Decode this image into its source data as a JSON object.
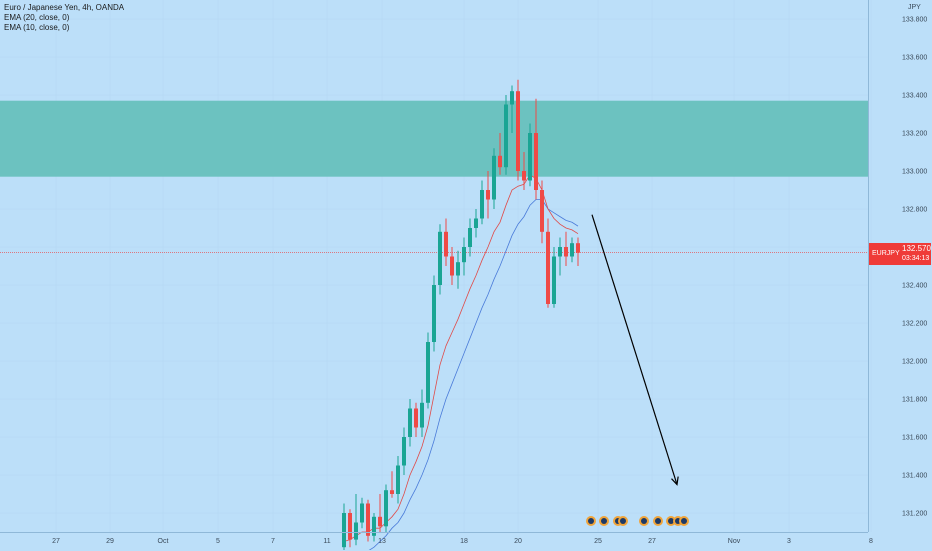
{
  "legend": {
    "title": "Euro / Japanese Yen, 4h, OANDA",
    "ema20": "EMA (20, close, 0)",
    "ema10": "EMA (10, close, 0)"
  },
  "price_axis": {
    "unit": "JPY",
    "ticks": [
      "133.800",
      "133.600",
      "133.400",
      "133.200",
      "133.000",
      "132.800",
      "132.600",
      "132.400",
      "132.200",
      "132.000",
      "131.800",
      "131.600",
      "131.400",
      "131.200"
    ]
  },
  "time_axis": {
    "ticks": [
      "27",
      "29",
      "Oct",
      "5",
      "7",
      "11",
      "13",
      "18",
      "20",
      "25",
      "27",
      "Nov",
      "3",
      "8"
    ]
  },
  "current": {
    "symbol": "EURJPY",
    "price": "132.570",
    "countdown": "03:34:13"
  },
  "colors": {
    "background": "#bcdff9",
    "up": "#1aa594",
    "down": "#ef4a46",
    "zone": "#6cc2c0",
    "ema20": "#4a7bd9",
    "ema10": "#e04a48",
    "current_line": "#ef3b38"
  },
  "chart_data": {
    "type": "candlestick",
    "symbol": "EURJPY",
    "timeframe": "4h",
    "ylim": [
      131.1,
      133.9
    ],
    "resistance_zone": [
      132.97,
      133.37
    ],
    "current_price": 132.57,
    "events": 9,
    "candles": [
      {
        "o": 131.02,
        "h": 131.25,
        "l": 130.98,
        "c": 131.2
      },
      {
        "o": 131.2,
        "h": 131.22,
        "l": 131.02,
        "c": 131.06
      },
      {
        "o": 131.06,
        "h": 131.3,
        "l": 131.03,
        "c": 131.15
      },
      {
        "o": 131.15,
        "h": 131.28,
        "l": 131.12,
        "c": 131.25
      },
      {
        "o": 131.25,
        "h": 131.27,
        "l": 131.05,
        "c": 131.08
      },
      {
        "o": 131.08,
        "h": 131.2,
        "l": 131.05,
        "c": 131.18
      },
      {
        "o": 131.18,
        "h": 131.3,
        "l": 131.1,
        "c": 131.13
      },
      {
        "o": 131.13,
        "h": 131.35,
        "l": 131.1,
        "c": 131.32
      },
      {
        "o": 131.32,
        "h": 131.42,
        "l": 131.28,
        "c": 131.3
      },
      {
        "o": 131.3,
        "h": 131.5,
        "l": 131.25,
        "c": 131.45
      },
      {
        "o": 131.45,
        "h": 131.65,
        "l": 131.4,
        "c": 131.6
      },
      {
        "o": 131.6,
        "h": 131.8,
        "l": 131.55,
        "c": 131.75
      },
      {
        "o": 131.75,
        "h": 131.78,
        "l": 131.6,
        "c": 131.65
      },
      {
        "o": 131.65,
        "h": 131.85,
        "l": 131.6,
        "c": 131.78
      },
      {
        "o": 131.78,
        "h": 132.15,
        "l": 131.75,
        "c": 132.1
      },
      {
        "o": 132.1,
        "h": 132.45,
        "l": 132.05,
        "c": 132.4
      },
      {
        "o": 132.4,
        "h": 132.72,
        "l": 132.35,
        "c": 132.68
      },
      {
        "o": 132.68,
        "h": 132.75,
        "l": 132.5,
        "c": 132.55
      },
      {
        "o": 132.55,
        "h": 132.6,
        "l": 132.4,
        "c": 132.45
      },
      {
        "o": 132.45,
        "h": 132.58,
        "l": 132.38,
        "c": 132.52
      },
      {
        "o": 132.52,
        "h": 132.65,
        "l": 132.45,
        "c": 132.6
      },
      {
        "o": 132.6,
        "h": 132.75,
        "l": 132.55,
        "c": 132.7
      },
      {
        "o": 132.7,
        "h": 132.8,
        "l": 132.65,
        "c": 132.75
      },
      {
        "o": 132.75,
        "h": 132.95,
        "l": 132.72,
        "c": 132.9
      },
      {
        "o": 132.9,
        "h": 133.0,
        "l": 132.75,
        "c": 132.85
      },
      {
        "o": 132.85,
        "h": 133.12,
        "l": 132.8,
        "c": 133.08
      },
      {
        "o": 133.08,
        "h": 133.2,
        "l": 132.98,
        "c": 133.02
      },
      {
        "o": 133.02,
        "h": 133.4,
        "l": 132.98,
        "c": 133.35
      },
      {
        "o": 133.35,
        "h": 133.45,
        "l": 133.2,
        "c": 133.42
      },
      {
        "o": 133.42,
        "h": 133.48,
        "l": 132.95,
        "c": 133.0
      },
      {
        "o": 133.0,
        "h": 133.1,
        "l": 132.9,
        "c": 132.95
      },
      {
        "o": 132.95,
        "h": 133.25,
        "l": 132.92,
        "c": 133.2
      },
      {
        "o": 133.2,
        "h": 133.38,
        "l": 132.85,
        "c": 132.9
      },
      {
        "o": 132.9,
        "h": 132.95,
        "l": 132.62,
        "c": 132.68
      },
      {
        "o": 132.68,
        "h": 132.75,
        "l": 132.28,
        "c": 132.3
      },
      {
        "o": 132.3,
        "h": 132.6,
        "l": 132.28,
        "c": 132.55
      },
      {
        "o": 132.55,
        "h": 132.65,
        "l": 132.45,
        "c": 132.6
      },
      {
        "o": 132.6,
        "h": 132.68,
        "l": 132.5,
        "c": 132.55
      },
      {
        "o": 132.55,
        "h": 132.65,
        "l": 132.52,
        "c": 132.62
      },
      {
        "o": 132.62,
        "h": 132.65,
        "l": 132.5,
        "c": 132.57
      }
    ],
    "ema10": [
      131.05,
      131.06,
      131.08,
      131.1,
      131.1,
      131.12,
      131.12,
      131.15,
      131.18,
      131.22,
      131.3,
      131.4,
      131.47,
      131.55,
      131.66,
      131.82,
      131.98,
      132.08,
      132.15,
      132.22,
      132.3,
      132.38,
      132.45,
      132.53,
      132.6,
      132.68,
      132.73,
      132.82,
      132.9,
      132.92,
      132.93,
      132.98,
      132.96,
      132.9,
      132.8,
      132.75,
      132.72,
      132.7,
      132.69,
      132.67
    ],
    "ema20": [
      130.9,
      130.92,
      130.95,
      130.97,
      131.0,
      131.02,
      131.05,
      131.08,
      131.12,
      131.15,
      131.2,
      131.27,
      131.33,
      131.4,
      131.48,
      131.58,
      131.7,
      131.8,
      131.88,
      131.96,
      132.04,
      132.12,
      132.2,
      132.28,
      132.35,
      132.43,
      132.5,
      132.58,
      132.66,
      132.72,
      132.76,
      132.82,
      132.85,
      132.85,
      132.8,
      132.78,
      132.76,
      132.74,
      132.73,
      132.71
    ],
    "projection": {
      "from_price": 132.77,
      "to_price": 131.35
    }
  }
}
